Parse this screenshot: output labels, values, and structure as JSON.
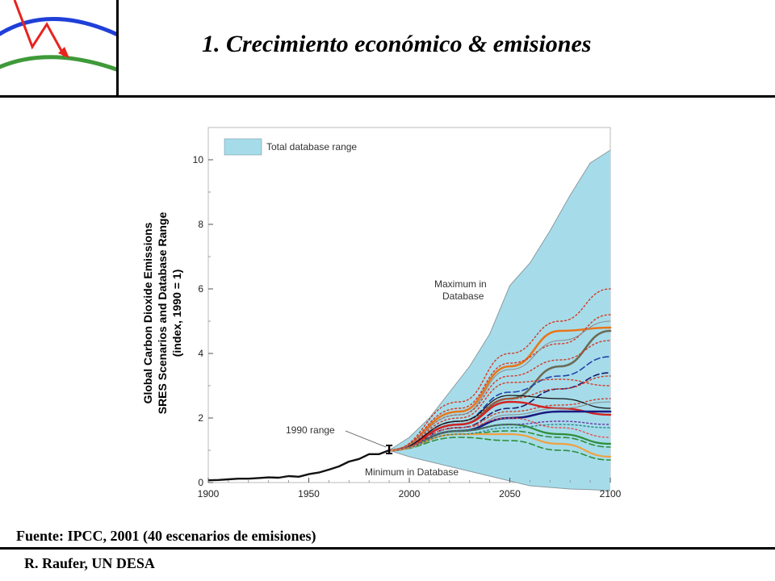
{
  "header": {
    "title": "1.  Crecimiento económico & emisiones"
  },
  "footer": {
    "source": "Fuente: IPCC, 2001 (40 escenarios de emisiones)",
    "author": "R. Raufer, UN DESA"
  },
  "logo": {
    "colors": {
      "upper_arc": "#1f3fd8",
      "lower_arc": "#3f9a3a",
      "arrow": "#e8231f"
    }
  },
  "chart_data": {
    "type": "line",
    "ylabel_lines": [
      "Global Carbon Dioxide Emissions",
      "SRES Scenarios and Database Range",
      "(index, 1990 = 1)"
    ],
    "xlabel": "",
    "xlim": [
      1900,
      2100
    ],
    "ylim": [
      0,
      11
    ],
    "x_ticks": [
      1900,
      1950,
      2000,
      2050,
      2100
    ],
    "y_ticks": [
      0,
      2,
      4,
      6,
      8,
      10
    ],
    "grid": false,
    "legend": {
      "label": "Total database range",
      "placement": "top-left"
    },
    "annotations": {
      "max": "Maximum in\nDatabase",
      "min": "Minimum in  Database",
      "range1990": "1990 range"
    },
    "colors": {
      "range_fill": "#a6dcea",
      "historical": "#111111",
      "max_edge": "#8a9aa0",
      "min_edge": "#8a9aa0"
    },
    "historical": {
      "x": [
        1900,
        1905,
        1910,
        1915,
        1920,
        1925,
        1930,
        1935,
        1940,
        1945,
        1950,
        1955,
        1960,
        1965,
        1970,
        1975,
        1980,
        1985,
        1990
      ],
      "y": [
        0.07,
        0.08,
        0.1,
        0.12,
        0.12,
        0.14,
        0.16,
        0.15,
        0.2,
        0.18,
        0.26,
        0.31,
        0.4,
        0.5,
        0.65,
        0.73,
        0.88,
        0.88,
        1.0
      ]
    },
    "database_range": {
      "x": [
        1990,
        2000,
        2010,
        2020,
        2030,
        2040,
        2050,
        2060,
        2070,
        2080,
        2090,
        2100
      ],
      "max": [
        1.0,
        1.4,
        2.0,
        2.8,
        3.6,
        4.6,
        6.1,
        6.8,
        7.8,
        8.9,
        9.9,
        10.3
      ],
      "min": [
        1.0,
        0.8,
        0.65,
        0.5,
        0.35,
        0.2,
        0.05,
        -0.1,
        -0.15,
        -0.2,
        -0.22,
        -0.25
      ]
    },
    "range_1990": {
      "x": 1990,
      "low": 0.9,
      "high": 1.15
    },
    "scenario_x": [
      1990,
      2025,
      2050,
      2075,
      2100
    ],
    "series": [
      {
        "color": "#e8761a",
        "dash": "solid",
        "width": 2.6,
        "values": [
          1.0,
          2.2,
          3.6,
          4.7,
          4.8
        ]
      },
      {
        "color": "#6b6b55",
        "dash": "solid",
        "width": 2.6,
        "values": [
          1.0,
          1.8,
          2.6,
          3.6,
          4.7
        ]
      },
      {
        "color": "#2244aa",
        "dash": "dashed",
        "width": 1.6,
        "values": [
          1.0,
          1.9,
          2.8,
          3.3,
          3.9
        ]
      },
      {
        "color": "#1a1a70",
        "dash": "dashed",
        "width": 1.6,
        "values": [
          1.0,
          1.7,
          2.3,
          2.9,
          3.4
        ]
      },
      {
        "color": "#d23a24",
        "dash": "dotted",
        "width": 1.4,
        "values": [
          1.0,
          2.5,
          4.0,
          5.0,
          6.0
        ]
      },
      {
        "color": "#d23a24",
        "dash": "dotted",
        "width": 1.4,
        "values": [
          1.0,
          2.3,
          3.7,
          4.3,
          5.2
        ]
      },
      {
        "color": "#d23a24",
        "dash": "dotted",
        "width": 1.4,
        "values": [
          1.0,
          2.1,
          3.3,
          3.8,
          4.4
        ]
      },
      {
        "color": "#d23a24",
        "dash": "dotted",
        "width": 1.4,
        "values": [
          1.0,
          2.0,
          3.1,
          3.2,
          3.0
        ]
      },
      {
        "color": "#d23a24",
        "dash": "dotted",
        "width": 1.4,
        "values": [
          1.0,
          1.9,
          2.6,
          2.9,
          3.3
        ]
      },
      {
        "color": "#d23a24",
        "dash": "dotted",
        "width": 1.4,
        "values": [
          1.0,
          1.7,
          2.2,
          2.4,
          2.6
        ]
      },
      {
        "color": "#d42020",
        "dash": "solid",
        "width": 2.4,
        "values": [
          1.0,
          1.8,
          2.5,
          2.3,
          2.1
        ]
      },
      {
        "color": "#111111",
        "dash": "solid",
        "width": 1.2,
        "values": [
          1.0,
          1.9,
          2.7,
          2.6,
          2.3
        ]
      },
      {
        "color": "#8a8a8a",
        "dash": "solid",
        "width": 1.0,
        "values": [
          1.0,
          2.1,
          3.5,
          4.4,
          5.0
        ]
      },
      {
        "color": "#8a8a8a",
        "dash": "solid",
        "width": 1.0,
        "values": [
          1.0,
          1.6,
          2.1,
          2.3,
          2.5
        ]
      },
      {
        "color": "#1a1a80",
        "dash": "solid",
        "width": 2.6,
        "values": [
          1.0,
          1.6,
          2.0,
          2.2,
          2.2
        ]
      },
      {
        "color": "#2f8e3a",
        "dash": "solid",
        "width": 2.2,
        "values": [
          1.0,
          1.6,
          1.8,
          1.5,
          1.2
        ]
      },
      {
        "color": "#2f8e3a",
        "dash": "dashed",
        "width": 1.6,
        "values": [
          1.0,
          1.4,
          1.3,
          1.0,
          0.7
        ]
      },
      {
        "color": "#2f8e3a",
        "dash": "dashed",
        "width": 1.6,
        "values": [
          1.0,
          1.5,
          1.6,
          1.4,
          1.1
        ]
      },
      {
        "color": "#f0a040",
        "dash": "solid",
        "width": 2.2,
        "values": [
          1.0,
          1.5,
          1.5,
          1.2,
          0.8
        ]
      },
      {
        "color": "#6a3aa0",
        "dash": "dotted",
        "width": 1.4,
        "values": [
          1.0,
          1.6,
          1.8,
          1.9,
          1.8
        ]
      },
      {
        "color": "#2a8a8a",
        "dash": "dotted",
        "width": 1.4,
        "values": [
          1.0,
          1.5,
          1.7,
          1.8,
          1.7
        ]
      },
      {
        "color": "#e05050",
        "dash": "dotted",
        "width": 1.4,
        "values": [
          1.0,
          1.7,
          2.0,
          1.7,
          1.4
        ]
      }
    ]
  }
}
